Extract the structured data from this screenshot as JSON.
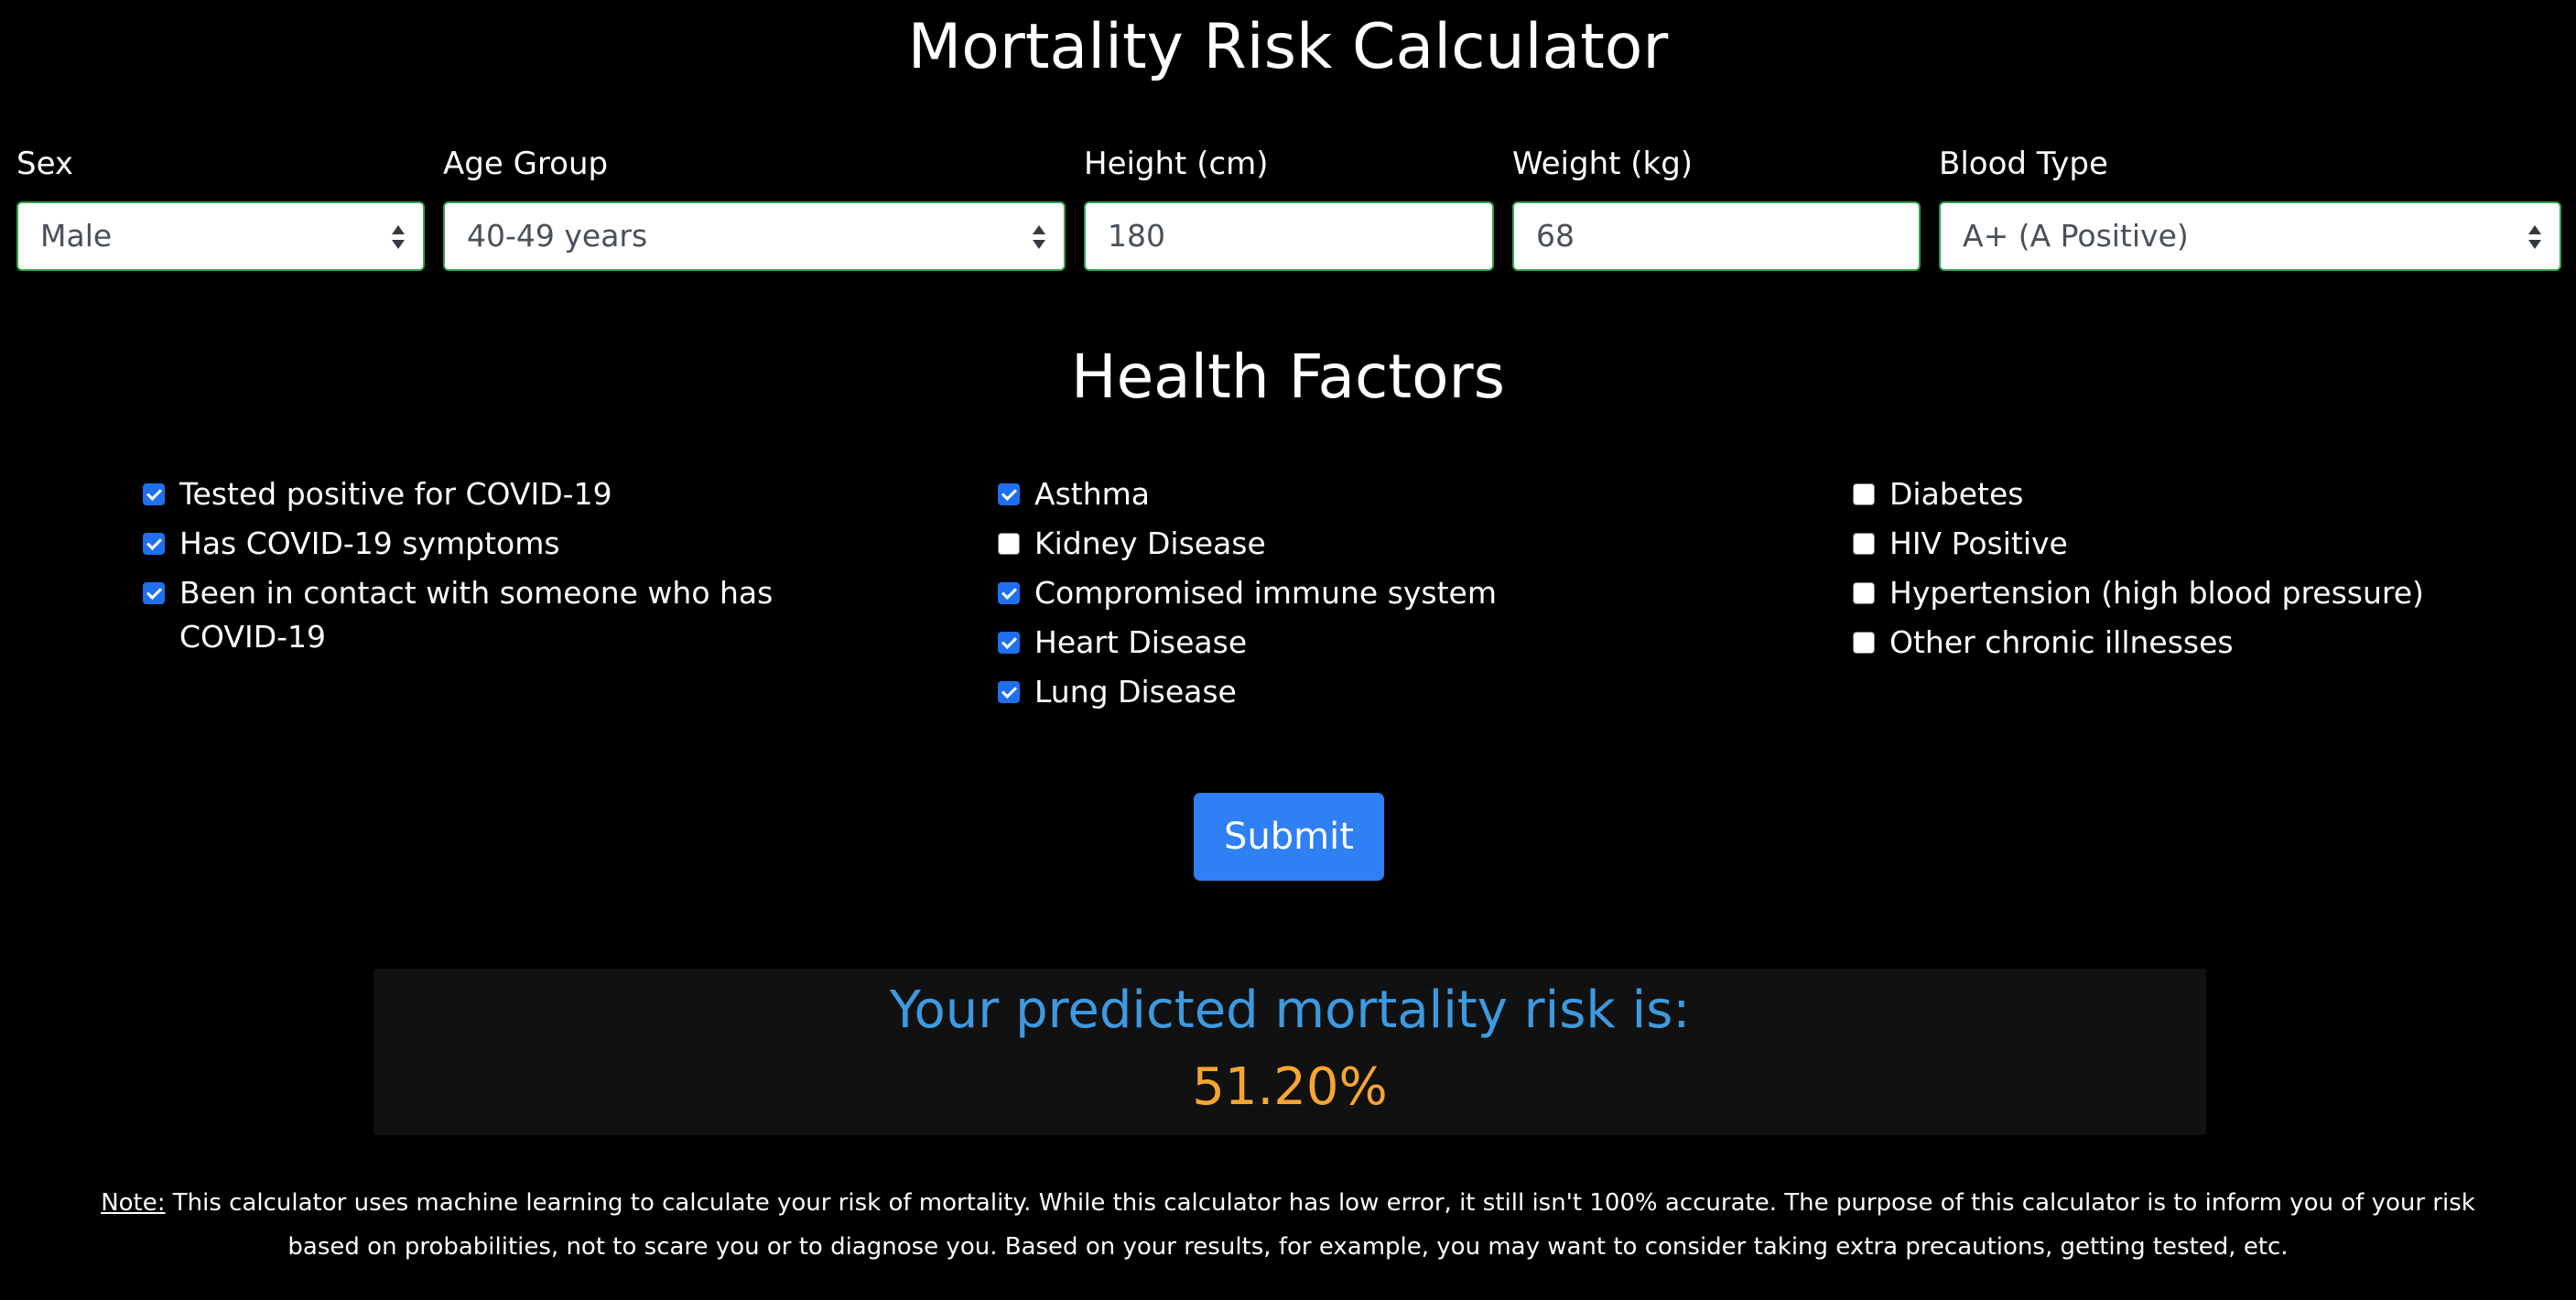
{
  "title": "Mortality Risk Calculator",
  "fields": {
    "sex": {
      "label": "Sex",
      "value": "Male"
    },
    "age_group": {
      "label": "Age Group",
      "value": "40-49 years"
    },
    "height": {
      "label": "Height (cm)",
      "value": "180"
    },
    "weight": {
      "label": "Weight (kg)",
      "value": "68"
    },
    "blood_type": {
      "label": "Blood Type",
      "value": "A+ (A Positive)"
    }
  },
  "health_factors": {
    "title": "Health Factors",
    "columns": [
      [
        {
          "label": "Tested positive for COVID-19",
          "checked": true
        },
        {
          "label": "Has COVID-19 symptoms",
          "checked": true
        },
        {
          "label": "Been in contact with someone who has COVID-19",
          "checked": true
        }
      ],
      [
        {
          "label": "Asthma",
          "checked": true
        },
        {
          "label": "Kidney Disease",
          "checked": false
        },
        {
          "label": "Compromised immune system",
          "checked": true
        },
        {
          "label": "Heart Disease",
          "checked": true
        },
        {
          "label": "Lung Disease",
          "checked": true
        }
      ],
      [
        {
          "label": "Diabetes",
          "checked": false
        },
        {
          "label": "HIV Positive",
          "checked": false
        },
        {
          "label": "Hypertension (high blood pressure)",
          "checked": false
        },
        {
          "label": "Other chronic illnesses",
          "checked": false
        }
      ]
    ]
  },
  "submit_label": "Submit",
  "result": {
    "heading": "Your predicted mortality risk is:",
    "value": "51.20%"
  },
  "note": {
    "label": "Note:",
    "text": " This calculator uses machine learning to calculate your risk of mortality. While this calculator has low error, it still isn't 100% accurate. The purpose of this calculator is to inform you of your risk based on probabilities, not to scare you or to diagnose you. Based on your results, for example, you may want to consider taking extra precautions, getting tested, etc."
  },
  "colors": {
    "background": "#000000",
    "accent_blue": "#2f7ff5",
    "result_heading": "#3d9ae0",
    "result_value": "#f7a633",
    "input_border": "#2fa34a"
  }
}
